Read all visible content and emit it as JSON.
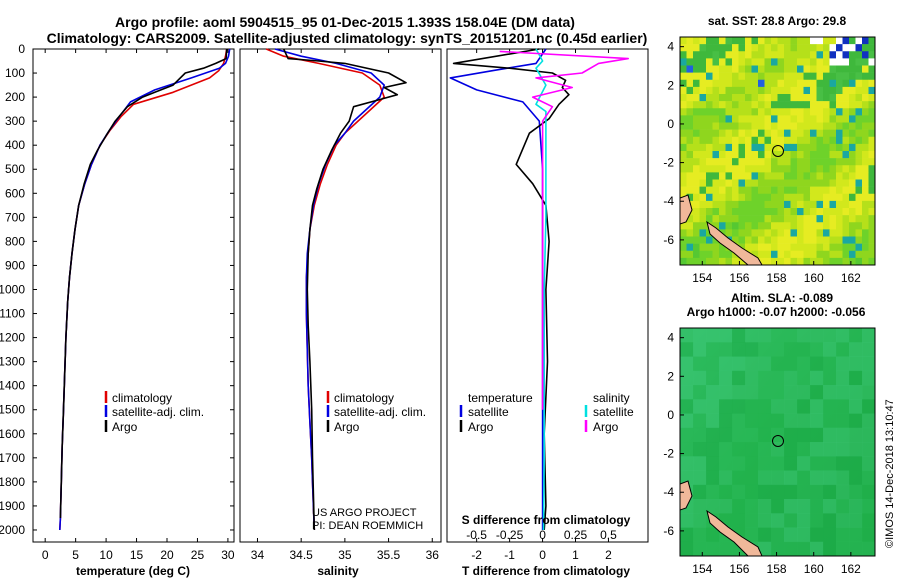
{
  "header": {
    "line1": "Argo profile: aoml 5904515_95 01-Dec-2015 1.393S 158.04E (DM data)",
    "line2": "Climatology: CARS2009. Satellite-adjusted climatology: synTS_20151201.nc (0.45d earlier)"
  },
  "colors": {
    "climatology": "#e00000",
    "satellite": "#0000e0",
    "argo": "#000000",
    "sat_salinity": "#00e0e0",
    "argo_salinity": "#ff00ff"
  },
  "chart_data": [
    {
      "type": "line",
      "id": "temperature",
      "xlabel": "temperature (deg C)",
      "ylabel": "",
      "xlim": [
        -2,
        31
      ],
      "ylim": [
        0,
        2050
      ],
      "xticks": [
        0,
        5,
        10,
        15,
        20,
        25,
        30
      ],
      "yticks": [
        0,
        100,
        200,
        300,
        400,
        500,
        600,
        700,
        800,
        900,
        1000,
        1100,
        1200,
        1300,
        1400,
        1500,
        1600,
        1700,
        1800,
        1900,
        2000
      ],
      "legend": [
        "climatology",
        "satellite-adj. clim.",
        "Argo"
      ],
      "series": [
        {
          "name": "climatology",
          "color": "#e00000",
          "x": [
            29.8,
            29.6,
            29.3,
            28.5,
            27.0,
            21.0,
            14.5,
            12.5,
            10.6,
            9.0,
            7.6,
            6.5,
            5.5,
            4.9,
            4.4,
            4.0,
            3.7,
            3.4,
            3.2,
            3.0,
            2.8,
            2.7,
            2.6,
            2.5,
            2.4
          ],
          "y": [
            0,
            30,
            60,
            90,
            120,
            180,
            230,
            280,
            340,
            400,
            480,
            560,
            650,
            750,
            850,
            950,
            1050,
            1200,
            1350,
            1500,
            1650,
            1750,
            1850,
            1950,
            2000
          ]
        },
        {
          "name": "satellite-adj. clim.",
          "color": "#0000e0",
          "x": [
            30.3,
            30.1,
            29.6,
            28.6,
            24.0,
            18.0,
            14.0,
            12.2,
            10.5,
            9.0,
            7.6,
            6.5,
            5.5,
            4.9,
            4.4,
            4.0,
            3.7,
            3.4,
            3.2,
            3.0,
            2.8,
            2.7,
            2.6,
            2.5,
            2.4
          ],
          "y": [
            0,
            30,
            60,
            80,
            120,
            170,
            220,
            280,
            340,
            400,
            480,
            560,
            650,
            750,
            850,
            950,
            1050,
            1200,
            1350,
            1500,
            1650,
            1750,
            1850,
            1950,
            2000
          ]
        },
        {
          "name": "Argo",
          "color": "#000000",
          "x": [
            29.8,
            29.7,
            28.0,
            26.0,
            23.0,
            21.0,
            18.0,
            16.0,
            13.5,
            11.5,
            10.0,
            8.6,
            7.4,
            6.4,
            5.5,
            4.9,
            4.4,
            4.0,
            3.7,
            3.4,
            3.2,
            3.0,
            2.8,
            2.7,
            2.6,
            2.5
          ],
          "y": [
            0,
            40,
            60,
            80,
            100,
            150,
            180,
            200,
            240,
            300,
            360,
            420,
            480,
            560,
            650,
            750,
            850,
            950,
            1050,
            1200,
            1350,
            1500,
            1650,
            1750,
            1850,
            1950
          ]
        }
      ]
    },
    {
      "type": "line",
      "id": "salinity",
      "xlabel": "salinity",
      "xlim": [
        33.8,
        36.1
      ],
      "ylim": [
        0,
        2050
      ],
      "xticks": [
        34,
        34.5,
        35,
        35.5,
        36
      ],
      "xticklabels": [
        "34",
        "34.5",
        "35",
        "35.5",
        "36"
      ],
      "legend": [
        "climatology",
        "satellite-adj. clim.",
        "Argo"
      ],
      "annotation": [
        "US ARGO PROJECT",
        "PI: DEAN ROEMMICH"
      ],
      "series": [
        {
          "name": "climatology",
          "color": "#e00000",
          "x": [
            34.1,
            34.3,
            34.7,
            35.2,
            35.4,
            35.45,
            35.3,
            35.15,
            35.0,
            34.9,
            34.8,
            34.72,
            34.65,
            34.6,
            34.58,
            34.56,
            34.56,
            34.57,
            34.58,
            34.6,
            34.62,
            34.63,
            34.64,
            34.65
          ],
          "y": [
            0,
            30,
            60,
            100,
            150,
            200,
            250,
            300,
            350,
            400,
            480,
            560,
            650,
            750,
            850,
            950,
            1100,
            1250,
            1400,
            1550,
            1700,
            1800,
            1900,
            2000
          ]
        },
        {
          "name": "satellite-adj. clim.",
          "color": "#0000e0",
          "x": [
            34.2,
            34.5,
            34.9,
            35.3,
            35.45,
            35.4,
            35.25,
            35.1,
            35.0,
            34.88,
            34.78,
            34.7,
            34.64,
            34.6,
            34.57,
            34.56,
            34.56,
            34.57,
            34.58,
            34.6,
            34.62,
            34.63,
            34.64,
            34.65
          ],
          "y": [
            0,
            30,
            60,
            100,
            150,
            200,
            250,
            300,
            350,
            400,
            480,
            560,
            650,
            750,
            850,
            950,
            1100,
            1250,
            1400,
            1550,
            1700,
            1800,
            1900,
            2000
          ]
        },
        {
          "name": "Argo",
          "color": "#000000",
          "x": [
            34.3,
            34.35,
            34.7,
            35.0,
            35.5,
            35.7,
            35.45,
            35.6,
            35.1,
            35.05,
            34.95,
            34.85,
            34.75,
            34.68,
            34.63,
            34.6,
            34.58,
            34.57,
            34.58,
            34.6,
            34.62,
            34.63,
            34.64,
            34.65
          ],
          "y": [
            0,
            40,
            50,
            60,
            100,
            140,
            160,
            190,
            240,
            300,
            350,
            420,
            500,
            580,
            650,
            750,
            850,
            1000,
            1150,
            1300,
            1500,
            1700,
            1850,
            2000
          ]
        }
      ]
    },
    {
      "type": "line",
      "id": "difference",
      "xlabel": "T difference from climatology",
      "x2label": "S difference from climatology",
      "xlim": [
        -2.9,
        3.2
      ],
      "ylim": [
        0,
        2050
      ],
      "xticks": [
        -2,
        -1,
        0,
        1,
        2
      ],
      "x2ticks": [
        -0.5,
        -0.25,
        0,
        0.25,
        0.5
      ],
      "x2ticklabels": [
        "-0.5",
        "-0.25",
        "0",
        "0.25",
        "0.5"
      ],
      "legend_temperature": {
        "title": "temperature",
        "items": [
          "satellite",
          "Argo"
        ]
      },
      "legend_salinity": {
        "title": "salinity",
        "items": [
          "satellite",
          "Argo"
        ]
      },
      "series": [
        {
          "name": "T satellite",
          "color": "#0000e0",
          "x": [
            0.1,
            -0.2,
            -1.5,
            -2.8,
            -2.0,
            -0.6,
            -0.1,
            0,
            0,
            0,
            0,
            0,
            0
          ],
          "y": [
            0,
            60,
            90,
            120,
            170,
            220,
            300,
            500,
            700,
            1000,
            1400,
            1800,
            2000
          ]
        },
        {
          "name": "T Argo",
          "color": "#000000",
          "x": [
            -0.1,
            -2.7,
            -1.0,
            0.3,
            0.7,
            0.6,
            0.8,
            0.5,
            0.2,
            -0.4,
            -0.8,
            -0.3,
            0.1,
            0.2,
            0.1,
            0.15,
            0.05,
            0.1,
            0.05
          ],
          "y": [
            0,
            60,
            80,
            100,
            130,
            160,
            190,
            230,
            290,
            350,
            480,
            560,
            650,
            800,
            1000,
            1300,
            1600,
            1900,
            2000
          ]
        },
        {
          "name": "S satellite",
          "color": "#00e0e0",
          "x": [
            -0.2,
            0.0,
            -0.2,
            0.1,
            -0.2,
            0.1,
            0.1,
            0.1,
            0.05,
            0.05,
            0.05,
            0.03
          ],
          "y": [
            0,
            50,
            80,
            150,
            230,
            260,
            400,
            700,
            1000,
            1300,
            1700,
            2000
          ]
        },
        {
          "name": "S Argo",
          "color": "#ff00ff",
          "x": [
            -1.3,
            2.6,
            1.7,
            1.2,
            -0.2,
            0.9,
            -0.3,
            0.3,
            0.0,
            0.0,
            0.0,
            0.0
          ],
          "y": [
            10,
            40,
            60,
            100,
            120,
            160,
            200,
            240,
            300,
            600,
            1200,
            1500
          ]
        }
      ]
    },
    {
      "type": "heatmap",
      "id": "sst-map",
      "title": "sat. SST: 28.8 Argo: 29.8",
      "xticks": [
        154,
        156,
        158,
        160,
        162
      ],
      "yticks": [
        4,
        2,
        0,
        -2,
        -4,
        -6
      ],
      "xlim": [
        152.8,
        163.3
      ],
      "ylim": [
        -7.3,
        4.5
      ],
      "marker": {
        "lon": 158.04,
        "lat": -1.393
      }
    },
    {
      "type": "heatmap",
      "id": "sla-map",
      "title": "Altim. SLA: -0.089",
      "subtitle": "Argo h1000: -0.07 h2000: -0.056",
      "xticks": [
        154,
        156,
        158,
        160,
        162
      ],
      "yticks": [
        4,
        2,
        0,
        -2,
        -4,
        -6
      ],
      "xlim": [
        152.8,
        163.3
      ],
      "ylim": [
        -7.3,
        4.5
      ],
      "marker": {
        "lon": 158.04,
        "lat": -1.393
      }
    }
  ],
  "credit": "©IMOS 14-Dec-2018 13:10:47"
}
